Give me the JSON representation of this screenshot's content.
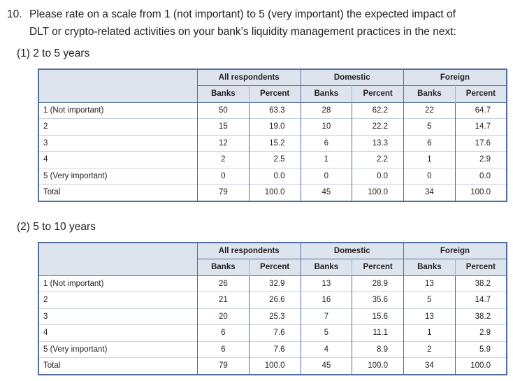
{
  "question": {
    "number": "10.",
    "line1": "Please rate on a scale from 1 (not important) to 5 (very important) the expected impact of",
    "line2": "DLT or crypto-related activities on your bank’s liquidity management practices in the next:"
  },
  "groups": [
    "All respondents",
    "Domestic",
    "Foreign"
  ],
  "subheaders": [
    "Banks",
    "Percent",
    "Banks",
    "Percent",
    "Banks",
    "Percent"
  ],
  "tables": [
    {
      "heading": "(1) 2 to 5 years",
      "rows": [
        {
          "label": "1 (Not important)",
          "cells": [
            "50",
            "63.3",
            "28",
            "62.2",
            "22",
            "64.7"
          ]
        },
        {
          "label": "2",
          "cells": [
            "15",
            "19.0",
            "10",
            "22.2",
            "5",
            "14.7"
          ]
        },
        {
          "label": "3",
          "cells": [
            "12",
            "15.2",
            "6",
            "13.3",
            "6",
            "17.6"
          ]
        },
        {
          "label": "4",
          "cells": [
            "2",
            "2.5",
            "1",
            "2.2",
            "1",
            "2.9"
          ]
        },
        {
          "label": "5 (Very important)",
          "cells": [
            "0",
            "0.0",
            "0",
            "0.0",
            "0",
            "0.0"
          ]
        },
        {
          "label": "Total",
          "cells": [
            "79",
            "100.0",
            "45",
            "100.0",
            "34",
            "100.0"
          ]
        }
      ]
    },
    {
      "heading": "(2) 5 to 10 years",
      "rows": [
        {
          "label": "1 (Not important)",
          "cells": [
            "26",
            "32.9",
            "13",
            "28.9",
            "13",
            "38.2"
          ]
        },
        {
          "label": "2",
          "cells": [
            "21",
            "26.6",
            "16",
            "35.6",
            "5",
            "14.7"
          ]
        },
        {
          "label": "3",
          "cells": [
            "20",
            "25.3",
            "7",
            "15.6",
            "13",
            "38.2"
          ]
        },
        {
          "label": "4",
          "cells": [
            "6",
            "7.6",
            "5",
            "11.1",
            "1",
            "2.9"
          ]
        },
        {
          "label": "5 (Very important)",
          "cells": [
            "6",
            "7.6",
            "4",
            "8.9",
            "2",
            "5.9"
          ]
        },
        {
          "label": "Total",
          "cells": [
            "79",
            "100.0",
            "45",
            "100.0",
            "34",
            "100.0"
          ]
        }
      ]
    }
  ]
}
